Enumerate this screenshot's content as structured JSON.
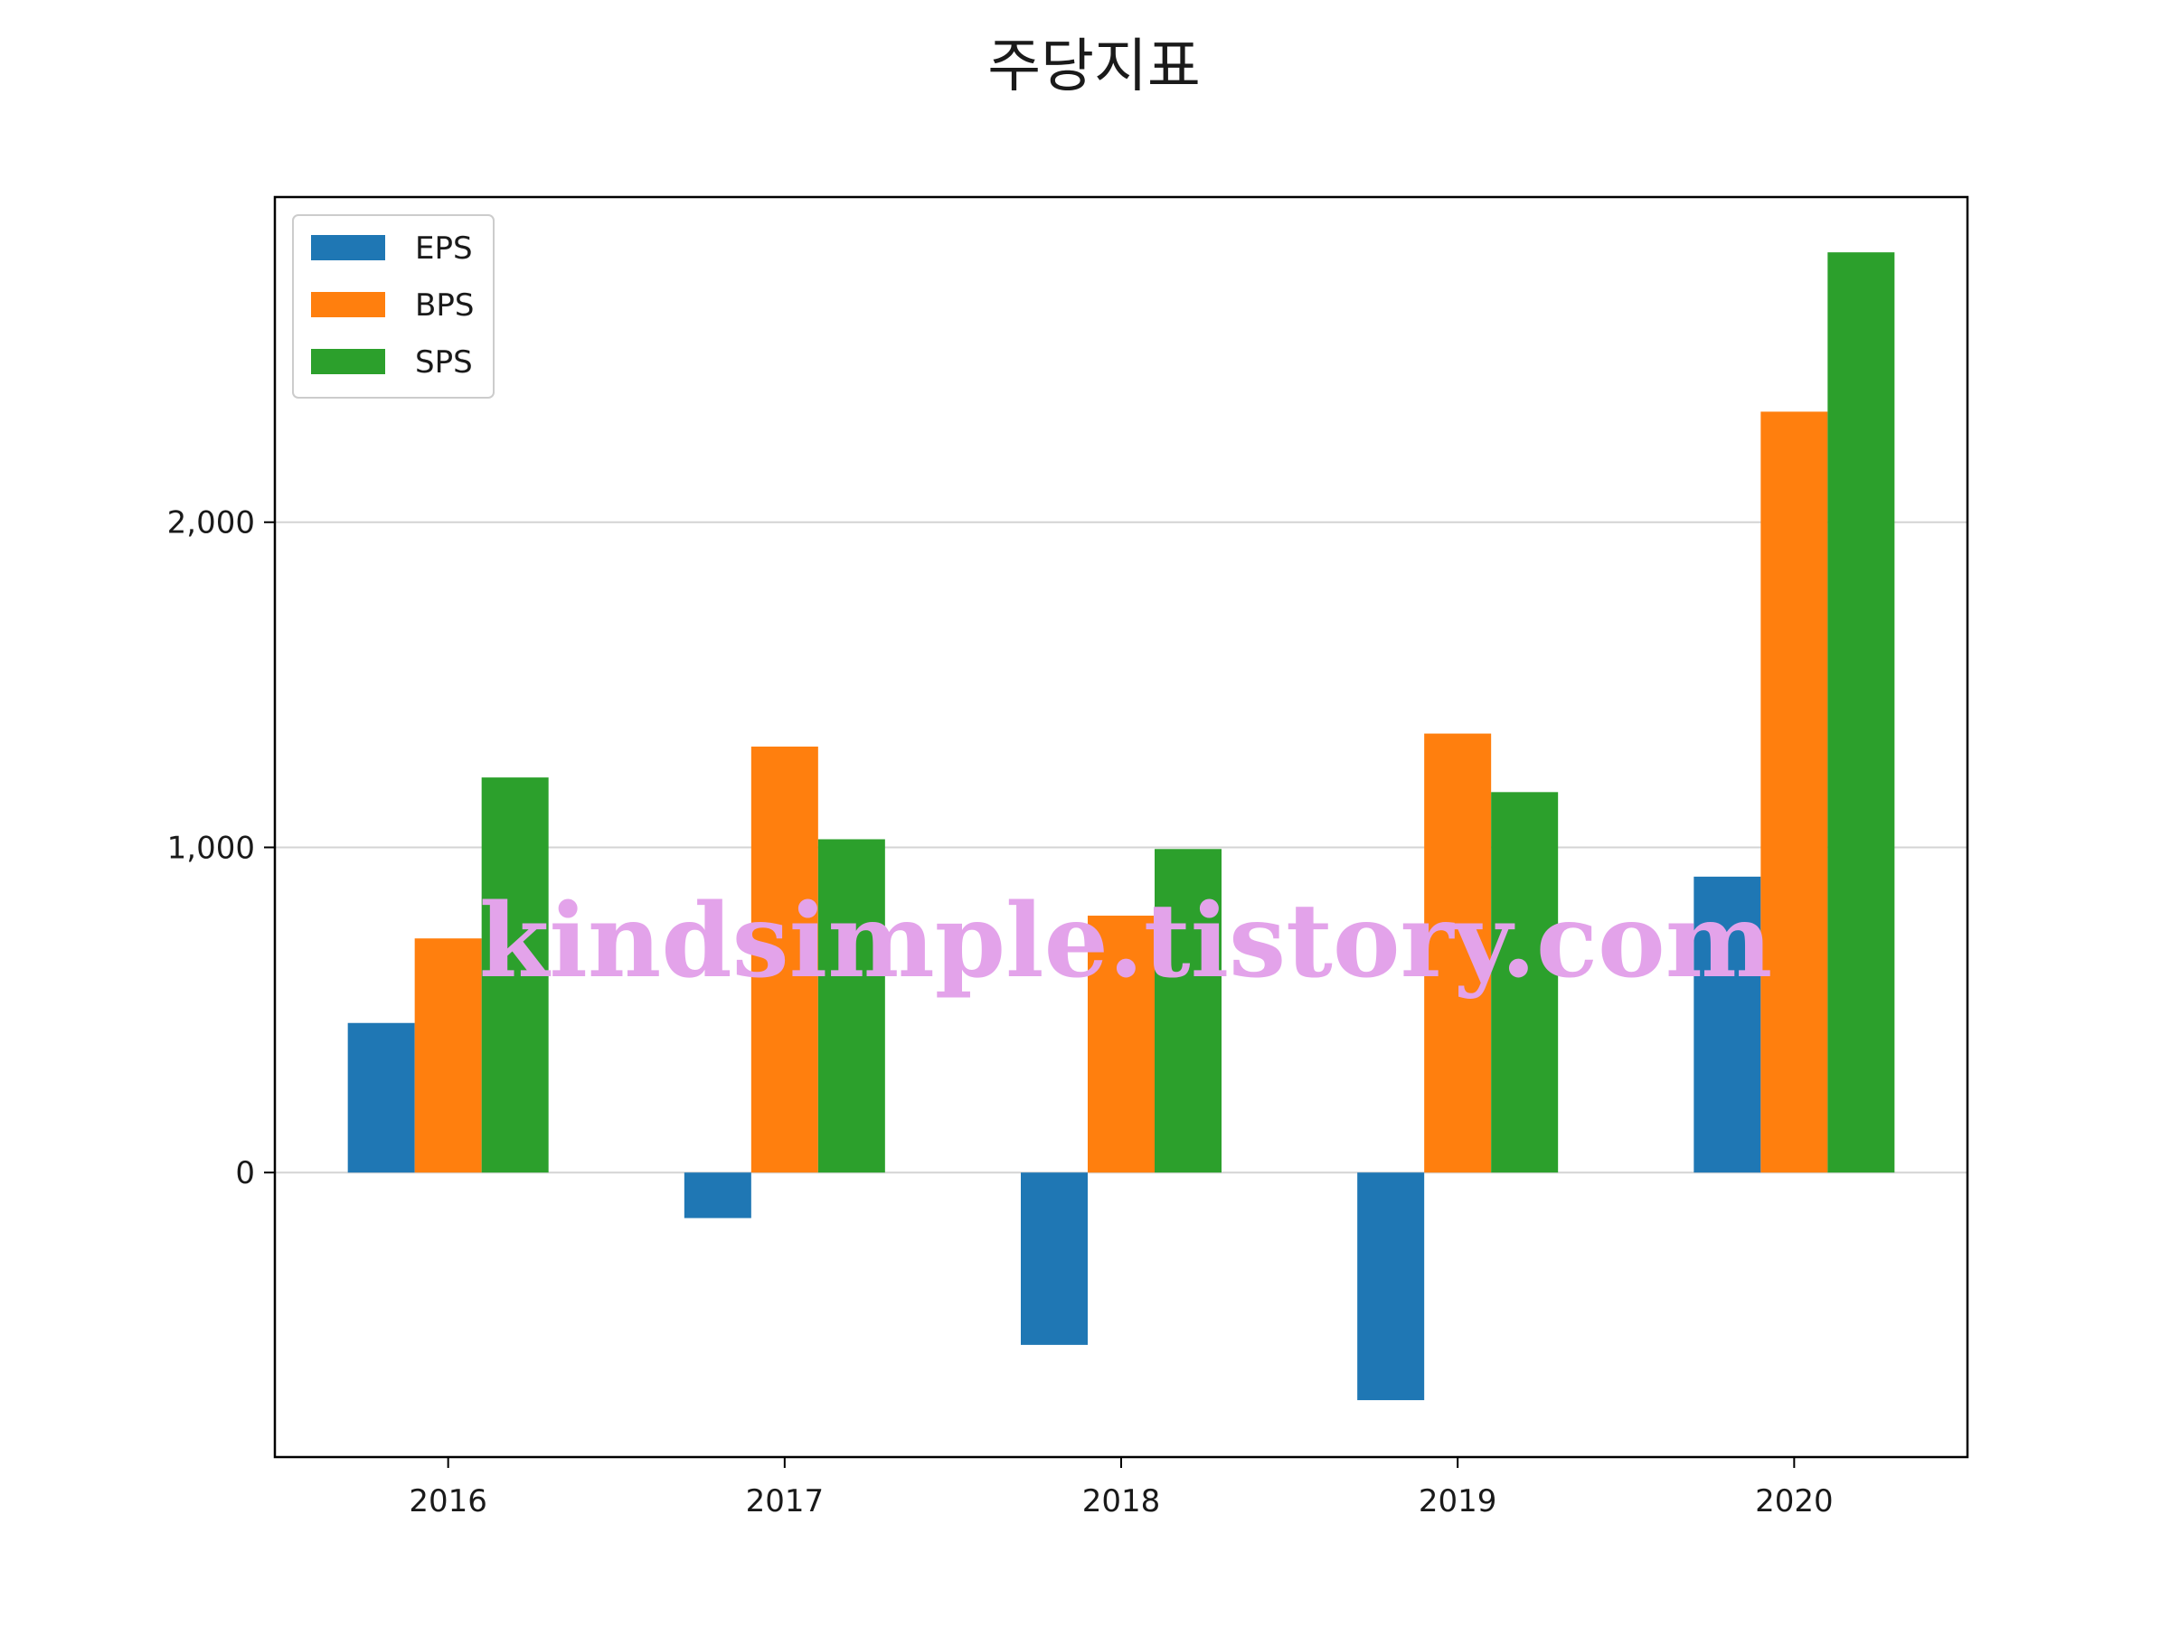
{
  "chart_data": {
    "type": "bar",
    "title": "주당지표",
    "xlabel": "",
    "ylabel": "",
    "categories": [
      "2016",
      "2017",
      "2018",
      "2019",
      "2020"
    ],
    "series": [
      {
        "name": "EPS",
        "color": "#1f77b4",
        "values": [
          460,
          -140,
          -530,
          -700,
          910
        ]
      },
      {
        "name": "BPS",
        "color": "#ff7f0e",
        "values": [
          720,
          1310,
          790,
          1350,
          2340
        ]
      },
      {
        "name": "SPS",
        "color": "#2ca02c",
        "values": [
          1215,
          1025,
          995,
          1170,
          2830
        ]
      }
    ],
    "ylim": [
      -875,
      3000
    ],
    "yticks": [
      0,
      1000,
      2000
    ],
    "ytick_labels": [
      "0",
      "1,000",
      "2,000"
    ],
    "grid": "horizontal",
    "legend_position": "top-left"
  },
  "watermark": {
    "text": "kindsimple.tistory.com",
    "color": "#e3a3ea"
  }
}
